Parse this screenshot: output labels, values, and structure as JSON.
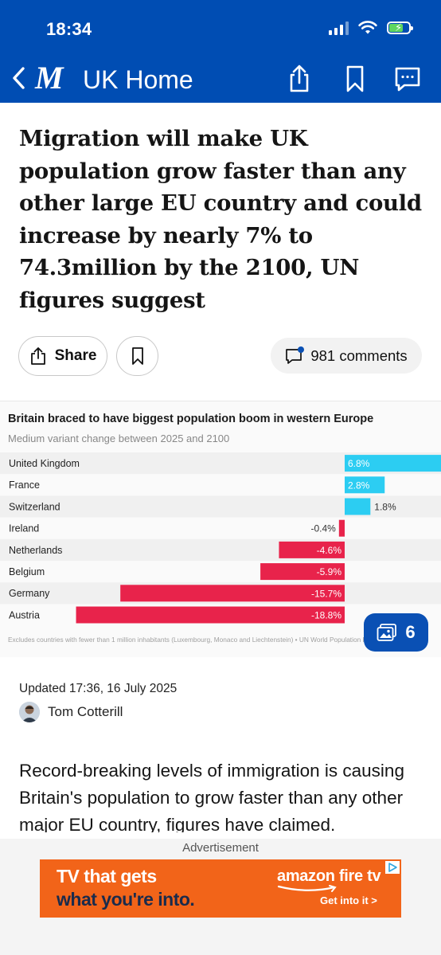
{
  "status_bar": {
    "time": "18:34"
  },
  "nav": {
    "title": "UK Home",
    "logo_glyph": "M",
    "icons": [
      "back-chevron-icon",
      "share-icon",
      "bookmark-icon",
      "comment-icon"
    ]
  },
  "article": {
    "headline": "Migration will make UK population grow faster than any other large EU country and could increase by nearly 7% to 74.3million by the 2100, UN figures suggest",
    "share_label": "Share",
    "comments_label": "981 comments",
    "updated": "Updated 17:36, 16 July 2025",
    "author": "Tom Cotterill",
    "body": "Record-breaking levels of immigration is causing Britain's population to grow faster than any other major EU country, figures have claimed."
  },
  "gallery": {
    "count": "6"
  },
  "chart_data": {
    "type": "bar",
    "orientation": "horizontal",
    "title": "Britain braced to have biggest population boom in western Europe",
    "subtitle": "Medium variant change between 2025 and 2100",
    "categories": [
      "United Kingdom",
      "France",
      "Switzerland",
      "Ireland",
      "Netherlands",
      "Belgium",
      "Germany",
      "Austria"
    ],
    "values": [
      6.8,
      2.8,
      1.8,
      -0.4,
      -4.6,
      -5.9,
      -15.7,
      -18.8
    ],
    "labels": [
      "6.8%",
      "2.8%",
      "1.8%",
      "-0.4%",
      "-4.6%",
      "-5.9%",
      "-15.7%",
      "-18.8%"
    ],
    "positive_color": "#2ccdf2",
    "negative_color": "#e8234b",
    "footnote": "Excludes countries with fewer than 1 million inhabitants (Luxembourg, Monaco and Liechtenstein) • UN World Population Prospects 2024"
  },
  "ad": {
    "label": "Advertisement",
    "line1": "TV that gets",
    "line2": "what you're into.",
    "brand": "amazon fire tv",
    "cta": "Get into it >",
    "color": "#f26419"
  }
}
